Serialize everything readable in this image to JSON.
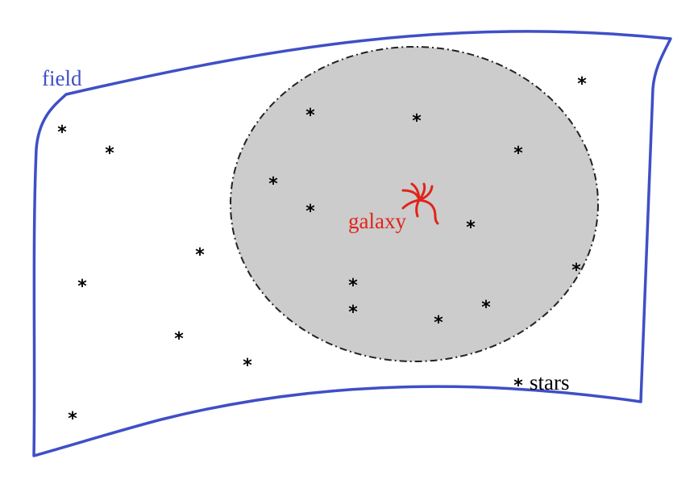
{
  "labels": {
    "field": "field",
    "galaxy": "galaxy",
    "stars": "stars"
  },
  "colors": {
    "field": "#3f4fc6",
    "galaxy": "#e0241b",
    "halo_fill": "#cccccc",
    "halo_stroke": "#222222",
    "stars": "#000000"
  },
  "icons": {
    "star": "asterisk",
    "galaxy": "spiral-galaxy"
  },
  "star_glyph": "*",
  "star_count": 20
}
